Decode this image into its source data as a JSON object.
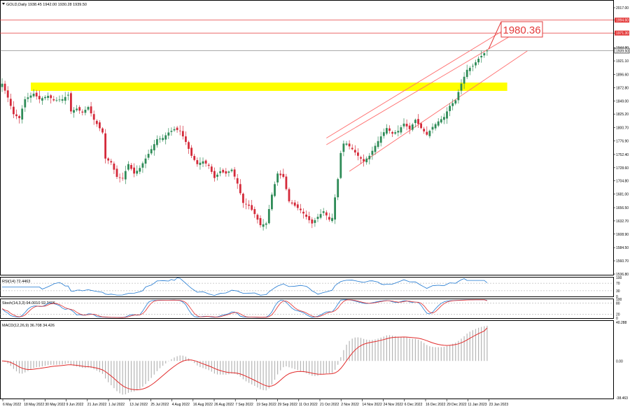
{
  "header": {
    "symbol_line": "GOLD,Daily  1938.45 1942.00 1930.28 1939.50"
  },
  "colors": {
    "bull": "#2e8b57",
    "bear": "#d42a3a",
    "highlight_zone": "#ffff00",
    "channel": "#ff6f6f",
    "hline": "#e33a3a",
    "rsi_line": "#1f78d1",
    "stoch_main": "#1f78d1",
    "stoch_signal": "#e22b2b",
    "macd_hist": "#b5b5b5",
    "macd_signal": "#e22b2b",
    "price_tag_bg": "#e33a3a",
    "current_tag_bg": "#ffffff"
  },
  "annotation": {
    "label": "1980.36"
  },
  "price_axis": {
    "ticks": [
      "2017.00",
      "1994.60",
      "1971.30",
      "1944.90",
      "1921.10",
      "1896.60",
      "1872.80",
      "1849.00",
      "1825.20",
      "1800.70",
      "1776.90",
      "1752.40",
      "1728.60",
      "1704.80",
      "1681.00",
      "1656.50",
      "1632.70",
      "1608.90",
      "1584.50",
      "1560.70",
      "1536.80"
    ],
    "tick_values": [
      2017.0,
      1994.6,
      1971.3,
      1944.9,
      1921.1,
      1896.6,
      1872.8,
      1849.0,
      1825.2,
      1800.7,
      1776.9,
      1752.4,
      1728.6,
      1704.8,
      1681.0,
      1656.5,
      1632.7,
      1608.9,
      1584.5,
      1560.7,
      1536.8
    ],
    "range": [
      1536.8,
      2017.0
    ],
    "tag_upper": "1994.60",
    "tag_lower": "1971.30",
    "tag_current": "1939.50"
  },
  "date_axis": {
    "labels": [
      "6 May 2022",
      "18 May 2022",
      "30 May 2022",
      "9 Jun 2022",
      "21 Jun 2022",
      "1 Jul 2022",
      "13 Jul 2022",
      "25 Jul 2022",
      "4 Aug 2022",
      "16 Aug 2022",
      "26 Aug 2022",
      "7 Sep 2022",
      "19 Sep 2022",
      "29 Sep 2022",
      "11 Oct 2022",
      "21 Oct 2022",
      "2 Nov 2022",
      "14 Nov 2022",
      "24 Nov 2022",
      "6 Dec 2022",
      "16 Dec 2022",
      "29 Dec 2022",
      "11 Jan 2023",
      "23 Jan 2023"
    ]
  },
  "rsi_panel": {
    "title": "RSI(14) 72.4463",
    "ticks": [
      "100",
      "70",
      "30",
      "0"
    ]
  },
  "stoch_panel": {
    "title": "Stoch(14,3,3) 94.0010 92.3406",
    "ticks": [
      "100",
      "80",
      "20",
      "0"
    ]
  },
  "macd_panel": {
    "title": "MACD(12,26,9) 36.708 34.426",
    "ticks": [
      "40.288",
      "0.00",
      "-38.463"
    ]
  },
  "chart_data": {
    "type": "candlestick",
    "instrument": "GOLD",
    "timeframe": "Daily",
    "last_ohlc": {
      "open": 1938.45,
      "high": 1942.0,
      "low": 1930.28,
      "close": 1939.5
    },
    "ylim": [
      1536.8,
      2017.0
    ],
    "resistance_zone": [
      1867,
      1882
    ],
    "horizontal_levels": [
      1994.6,
      1971.3
    ],
    "current_price": 1939.5,
    "annotation_value": 1980.36,
    "channel": {
      "upper": {
        "start_index": 113,
        "start_price": 1782,
        "end_index": 167,
        "end_price": 1952
      },
      "middle": {
        "start_index": 113,
        "start_price": 1770,
        "end_index": 167,
        "end_price": 1935
      },
      "lower": {
        "start_index": 121,
        "start_price": 1722,
        "end_index": 173,
        "end_price": 1904
      }
    },
    "close_anchors": [
      [
        0,
        1880
      ],
      [
        2,
        1855
      ],
      [
        4,
        1825
      ],
      [
        6,
        1818
      ],
      [
        8,
        1852
      ],
      [
        11,
        1862
      ],
      [
        13,
        1852
      ],
      [
        16,
        1858
      ],
      [
        18,
        1850
      ],
      [
        21,
        1852
      ],
      [
        23,
        1860
      ],
      [
        24,
        1830
      ],
      [
        26,
        1835
      ],
      [
        28,
        1828
      ],
      [
        30,
        1838
      ],
      [
        32,
        1815
      ],
      [
        35,
        1792
      ],
      [
        36,
        1745
      ],
      [
        38,
        1738
      ],
      [
        40,
        1712
      ],
      [
        42,
        1710
      ],
      [
        44,
        1735
      ],
      [
        46,
        1718
      ],
      [
        48,
        1728
      ],
      [
        50,
        1745
      ],
      [
        52,
        1762
      ],
      [
        54,
        1780
      ],
      [
        56,
        1782
      ],
      [
        58,
        1792
      ],
      [
        60,
        1798
      ],
      [
        62,
        1795
      ],
      [
        64,
        1775
      ],
      [
        66,
        1750
      ],
      [
        68,
        1735
      ],
      [
        70,
        1740
      ],
      [
        72,
        1732
      ],
      [
        74,
        1710
      ],
      [
        76,
        1722
      ],
      [
        78,
        1718
      ],
      [
        80,
        1725
      ],
      [
        82,
        1700
      ],
      [
        84,
        1665
      ],
      [
        86,
        1660
      ],
      [
        88,
        1645
      ],
      [
        90,
        1625
      ],
      [
        92,
        1628
      ],
      [
        94,
        1680
      ],
      [
        96,
        1718
      ],
      [
        98,
        1712
      ],
      [
        100,
        1668
      ],
      [
        102,
        1660
      ],
      [
        104,
        1652
      ],
      [
        106,
        1640
      ],
      [
        108,
        1628
      ],
      [
        110,
        1640
      ],
      [
        112,
        1650
      ],
      [
        114,
        1635
      ],
      [
        115,
        1638
      ],
      [
        116,
        1675
      ],
      [
        117,
        1708
      ],
      [
        118,
        1755
      ],
      [
        119,
        1772
      ],
      [
        120,
        1772
      ],
      [
        122,
        1762
      ],
      [
        124,
        1750
      ],
      [
        126,
        1740
      ],
      [
        128,
        1750
      ],
      [
        130,
        1768
      ],
      [
        132,
        1785
      ],
      [
        134,
        1800
      ],
      [
        136,
        1790
      ],
      [
        138,
        1795
      ],
      [
        140,
        1808
      ],
      [
        142,
        1798
      ],
      [
        144,
        1815
      ],
      [
        146,
        1800
      ],
      [
        148,
        1788
      ],
      [
        150,
        1802
      ],
      [
        152,
        1812
      ],
      [
        154,
        1820
      ],
      [
        156,
        1840
      ],
      [
        158,
        1850
      ],
      [
        160,
        1880
      ],
      [
        162,
        1905
      ],
      [
        164,
        1912
      ],
      [
        166,
        1925
      ],
      [
        168,
        1935
      ],
      [
        169,
        1939.5
      ]
    ],
    "rsi": {
      "value": 72.4463,
      "levels": [
        70,
        30
      ],
      "ylim": [
        0,
        100
      ]
    },
    "stochastic": {
      "main": 94.001,
      "signal": 92.3406,
      "levels": [
        80,
        20
      ],
      "ylim": [
        0,
        100
      ]
    },
    "macd": {
      "main": 36.708,
      "signal": 34.426,
      "ylim": [
        -38.463,
        40.288
      ]
    }
  }
}
